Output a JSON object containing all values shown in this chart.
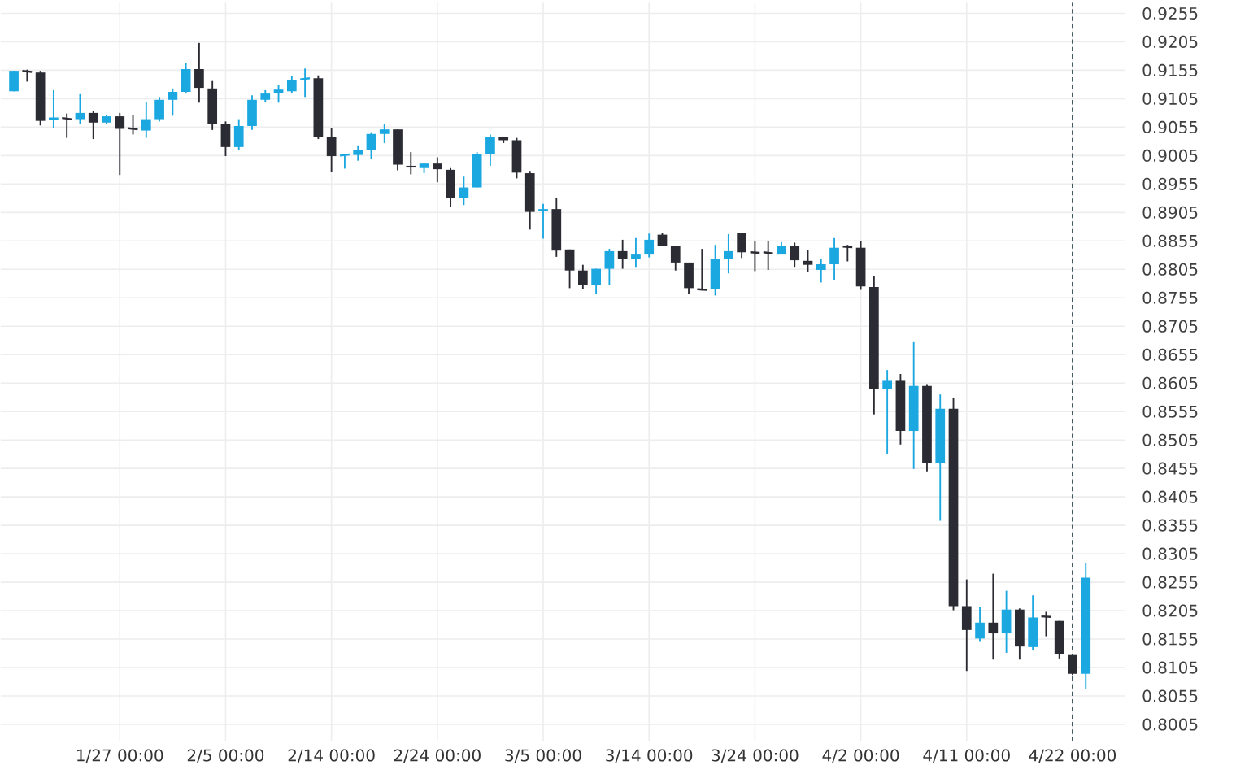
{
  "chart_data": {
    "type": "candlestick",
    "categories": [
      null,
      null,
      null,
      null,
      null,
      null,
      null,
      null,
      "1/27 00:00",
      null,
      null,
      null,
      null,
      null,
      null,
      null,
      "2/5 00:00",
      null,
      null,
      null,
      null,
      null,
      null,
      null,
      "2/14 00:00",
      null,
      null,
      null,
      null,
      null,
      null,
      null,
      "2/24 00:00",
      null,
      null,
      null,
      null,
      null,
      null,
      null,
      "3/5 00:00",
      null,
      null,
      null,
      null,
      null,
      null,
      null,
      "3/14 00:00",
      null,
      null,
      null,
      null,
      null,
      null,
      null,
      "3/24 00:00",
      null,
      null,
      null,
      null,
      null,
      null,
      null,
      "4/2 00:00",
      null,
      null,
      null,
      null,
      null,
      null,
      null,
      "4/11 00:00",
      null,
      null,
      null,
      null,
      null,
      null,
      null,
      "4/22 00:00",
      null
    ],
    "ohlc": [
      [
        0.9118,
        0.9154,
        0.9118,
        0.9154
      ],
      [
        0.9154,
        0.9156,
        0.9135,
        0.9152
      ],
      [
        0.9151,
        0.9154,
        0.9058,
        0.9066
      ],
      [
        0.9067,
        0.912,
        0.9053,
        0.9072
      ],
      [
        0.9071,
        0.9079,
        0.9036,
        0.9069
      ],
      [
        0.9069,
        0.9113,
        0.9061,
        0.908
      ],
      [
        0.908,
        0.9083,
        0.9034,
        0.9063
      ],
      [
        0.9063,
        0.9077,
        0.9061,
        0.9074
      ],
      [
        0.9074,
        0.908,
        0.8971,
        0.9052
      ],
      [
        0.9053,
        0.9076,
        0.9042,
        0.9051
      ],
      [
        0.9049,
        0.9099,
        0.9036,
        0.9069
      ],
      [
        0.9069,
        0.9108,
        0.9065,
        0.9103
      ],
      [
        0.9103,
        0.9123,
        0.9075,
        0.9117
      ],
      [
        0.9117,
        0.9168,
        0.9114,
        0.9157
      ],
      [
        0.9157,
        0.9203,
        0.9098,
        0.9124
      ],
      [
        0.9123,
        0.9136,
        0.905,
        0.906
      ],
      [
        0.906,
        0.9065,
        0.9004,
        0.902
      ],
      [
        0.902,
        0.9069,
        0.9014,
        0.9057
      ],
      [
        0.9057,
        0.9111,
        0.905,
        0.9103
      ],
      [
        0.9103,
        0.912,
        0.9099,
        0.9114
      ],
      [
        0.9115,
        0.9129,
        0.9098,
        0.9121
      ],
      [
        0.9118,
        0.9145,
        0.9114,
        0.9137
      ],
      [
        0.9139,
        0.9158,
        0.9108,
        0.9141
      ],
      [
        0.9141,
        0.9146,
        0.9034,
        0.9038
      ],
      [
        0.9037,
        0.9054,
        0.8976,
        0.9004
      ],
      [
        0.9005,
        0.9008,
        0.8982,
        0.9007
      ],
      [
        0.9006,
        0.9023,
        0.8996,
        0.9015
      ],
      [
        0.9015,
        0.9046,
        0.8999,
        0.9043
      ],
      [
        0.9043,
        0.906,
        0.9027,
        0.9051
      ],
      [
        0.9051,
        0.9051,
        0.8979,
        0.8989
      ],
      [
        0.8987,
        0.9011,
        0.8972,
        0.8984
      ],
      [
        0.8983,
        0.8991,
        0.8974,
        0.8991
      ],
      [
        0.8991,
        0.9002,
        0.8958,
        0.8981
      ],
      [
        0.898,
        0.8983,
        0.8915,
        0.893
      ],
      [
        0.893,
        0.8968,
        0.8918,
        0.8949
      ],
      [
        0.8949,
        0.9011,
        0.8949,
        0.9007
      ],
      [
        0.9007,
        0.9042,
        0.8987,
        0.9037
      ],
      [
        0.9037,
        0.9037,
        0.9027,
        0.9032
      ],
      [
        0.9032,
        0.9036,
        0.8965,
        0.8975
      ],
      [
        0.8974,
        0.8978,
        0.8875,
        0.8906
      ],
      [
        0.8907,
        0.892,
        0.8859,
        0.8911
      ],
      [
        0.8911,
        0.8931,
        0.8827,
        0.8838
      ],
      [
        0.884,
        0.884,
        0.8772,
        0.8803
      ],
      [
        0.8803,
        0.8813,
        0.877,
        0.8777
      ],
      [
        0.8777,
        0.8806,
        0.8762,
        0.8806
      ],
      [
        0.8806,
        0.8841,
        0.8777,
        0.8837
      ],
      [
        0.8837,
        0.8857,
        0.8806,
        0.8824
      ],
      [
        0.8824,
        0.886,
        0.8808,
        0.8831
      ],
      [
        0.8831,
        0.8868,
        0.8826,
        0.8857
      ],
      [
        0.8866,
        0.8869,
        0.8846,
        0.8846
      ],
      [
        0.8846,
        0.8846,
        0.8803,
        0.8817
      ],
      [
        0.8817,
        0.8817,
        0.8762,
        0.8772
      ],
      [
        0.877,
        0.8841,
        0.8768,
        0.8769
      ],
      [
        0.877,
        0.8848,
        0.8759,
        0.8823
      ],
      [
        0.8824,
        0.8867,
        0.8798,
        0.8837
      ],
      [
        0.8869,
        0.8869,
        0.8825,
        0.8835
      ],
      [
        0.8835,
        0.8855,
        0.8802,
        0.8834
      ],
      [
        0.8835,
        0.8855,
        0.8804,
        0.8833
      ],
      [
        0.8831,
        0.8853,
        0.8831,
        0.8846
      ],
      [
        0.8846,
        0.8852,
        0.8808,
        0.8821
      ],
      [
        0.882,
        0.8839,
        0.8801,
        0.8813
      ],
      [
        0.8804,
        0.8823,
        0.8782,
        0.8814
      ],
      [
        0.8814,
        0.886,
        0.8786,
        0.8843
      ],
      [
        0.8845,
        0.8848,
        0.8819,
        0.8844
      ],
      [
        0.8843,
        0.8854,
        0.8769,
        0.8775
      ],
      [
        0.8774,
        0.8794,
        0.855,
        0.8595
      ],
      [
        0.8595,
        0.8628,
        0.848,
        0.8609
      ],
      [
        0.8609,
        0.8621,
        0.8497,
        0.8521
      ],
      [
        0.8521,
        0.8677,
        0.8454,
        0.86
      ],
      [
        0.86,
        0.8603,
        0.845,
        0.8464
      ],
      [
        0.8464,
        0.8585,
        0.8363,
        0.856
      ],
      [
        0.856,
        0.8578,
        0.8206,
        0.8213
      ],
      [
        0.8213,
        0.826,
        0.8099,
        0.8171
      ],
      [
        0.8156,
        0.8212,
        0.815,
        0.8184
      ],
      [
        0.8184,
        0.827,
        0.8119,
        0.8165
      ],
      [
        0.8165,
        0.824,
        0.8131,
        0.8207
      ],
      [
        0.8207,
        0.8209,
        0.8119,
        0.8142
      ],
      [
        0.8141,
        0.8232,
        0.8136,
        0.8193
      ],
      [
        0.8195,
        0.8203,
        0.816,
        0.8194
      ],
      [
        0.8187,
        0.8187,
        0.8121,
        0.8128
      ],
      [
        0.8127,
        0.8127,
        0.8092,
        0.8094
      ],
      [
        0.8094,
        0.8289,
        0.8068,
        0.8263
      ]
    ],
    "colors": [
      "#1ba8e1",
      "#2b2b33",
      "#2b2b33",
      "#1ba8e1",
      "#2b2b33",
      "#1ba8e1",
      "#2b2b33",
      "#1ba8e1",
      "#2b2b33",
      "#2b2b33",
      "#1ba8e1",
      "#1ba8e1",
      "#1ba8e1",
      "#1ba8e1",
      "#2b2b33",
      "#2b2b33",
      "#2b2b33",
      "#1ba8e1",
      "#1ba8e1",
      "#1ba8e1",
      "#1ba8e1",
      "#1ba8e1",
      "#1ba8e1",
      "#2b2b33",
      "#2b2b33",
      "#1ba8e1",
      "#1ba8e1",
      "#1ba8e1",
      "#1ba8e1",
      "#2b2b33",
      "#2b2b33",
      "#1ba8e1",
      "#2b2b33",
      "#2b2b33",
      "#1ba8e1",
      "#1ba8e1",
      "#1ba8e1",
      "#2b2b33",
      "#2b2b33",
      "#2b2b33",
      "#1ba8e1",
      "#2b2b33",
      "#2b2b33",
      "#2b2b33",
      "#1ba8e1",
      "#1ba8e1",
      "#2b2b33",
      "#1ba8e1",
      "#1ba8e1",
      "#2b2b33",
      "#2b2b33",
      "#2b2b33",
      "#2b2b33",
      "#1ba8e1",
      "#1ba8e1",
      "#2b2b33",
      "#2b2b33",
      "#2b2b33",
      "#1ba8e1",
      "#2b2b33",
      "#2b2b33",
      "#1ba8e1",
      "#1ba8e1",
      "#2b2b33",
      "#2b2b33",
      "#2b2b33",
      "#1ba8e1",
      "#2b2b33",
      "#1ba8e1",
      "#2b2b33",
      "#1ba8e1",
      "#2b2b33",
      "#2b2b33",
      "#1ba8e1",
      "#2b2b33",
      "#1ba8e1",
      "#2b2b33",
      "#1ba8e1",
      "#2b2b33",
      "#2b2b33",
      "#2b2b33",
      "#1ba8e1"
    ],
    "ylim": [
      0.7975,
      0.9274
    ],
    "yticks": [
      0.8005,
      0.8055,
      0.8105,
      0.8155,
      0.8205,
      0.8255,
      0.8305,
      0.8355,
      0.8405,
      0.8455,
      0.8505,
      0.8555,
      0.8605,
      0.8655,
      0.8705,
      0.8755,
      0.8805,
      0.8855,
      0.8905,
      0.8955,
      0.9005,
      0.9055,
      0.9105,
      0.9155,
      0.9205,
      0.9255
    ],
    "grid": true,
    "ref_lines": [
      {
        "axis": "x",
        "value": "4/22 00:00",
        "line_style": "dashed",
        "color": "#1f3a44"
      }
    ]
  }
}
